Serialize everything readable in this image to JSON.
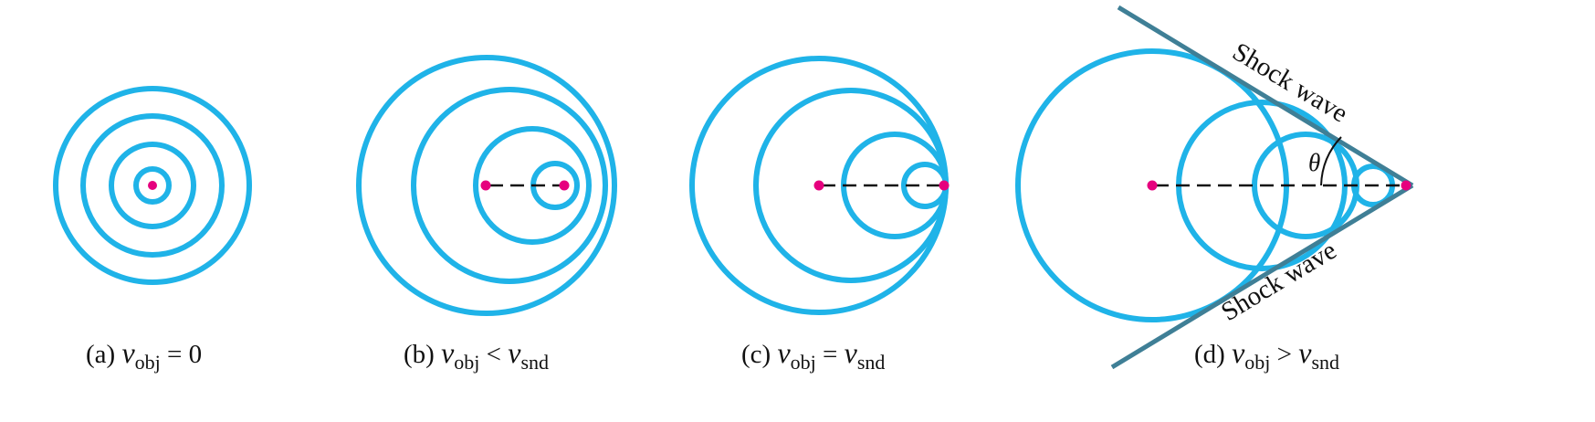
{
  "colors": {
    "wavefront": "#1fb3e8",
    "source_dot": "#e6007e",
    "shock_line": "#3f7f96",
    "path_line": "#111111"
  },
  "panels": [
    {
      "id": "a",
      "caption": {
        "prefix": "(a) ",
        "v": "v",
        "sub": "obj",
        "rel": " = 0",
        "v2": "",
        "sub2": ""
      }
    },
    {
      "id": "b",
      "caption": {
        "prefix": "(b) ",
        "v": "v",
        "sub": "obj",
        "rel": " < ",
        "v2": "v",
        "sub2": "snd"
      }
    },
    {
      "id": "c",
      "caption": {
        "prefix": "(c) ",
        "v": "v",
        "sub": "obj",
        "rel": " = ",
        "v2": "v",
        "sub2": "snd"
      }
    },
    {
      "id": "d",
      "caption": {
        "prefix": "(d) ",
        "v": "v",
        "sub": "obj",
        "rel": " > ",
        "v2": "v",
        "sub2": "snd"
      }
    }
  ],
  "shock_labels": {
    "upper": "Shock wave",
    "lower": "Shock wave"
  },
  "angle_label": "θ"
}
